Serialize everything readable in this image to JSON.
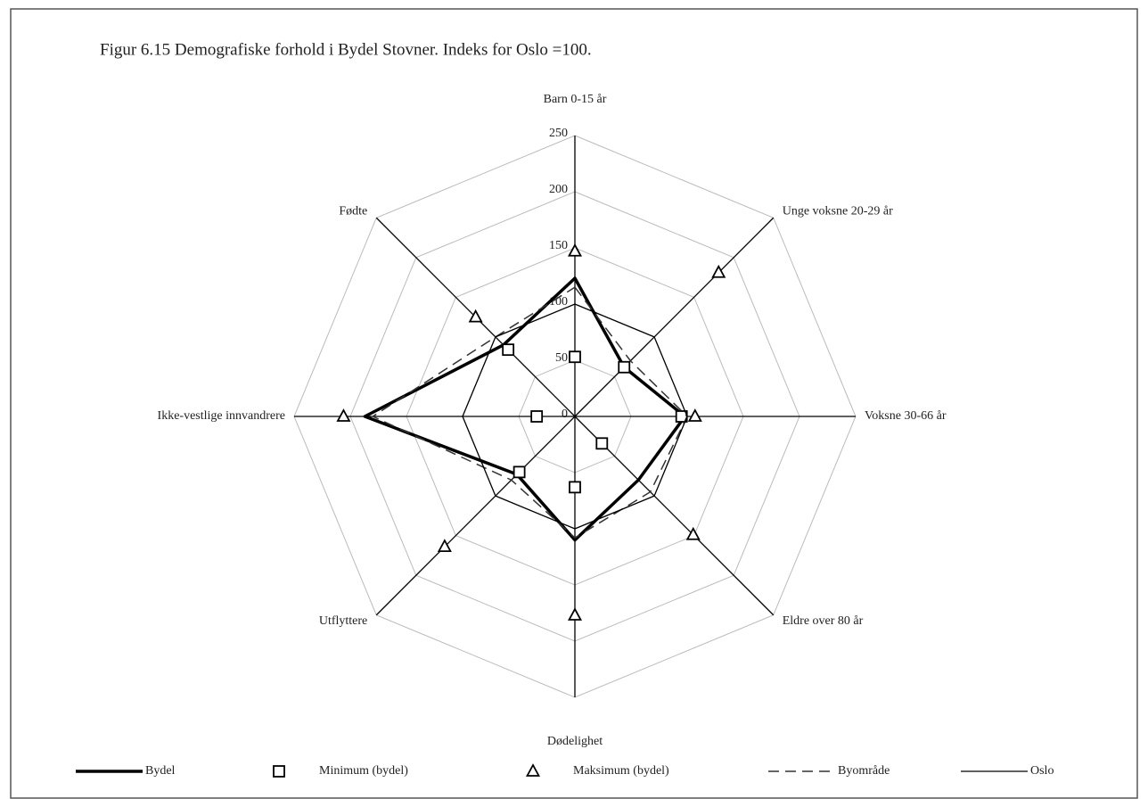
{
  "chart_data": {
    "type": "radar",
    "title": "Figur 6.15 Demografiske forhold i Bydel Stovner. Indeks for Oslo =100.",
    "categories": [
      "Barn 0-15 år",
      "Unge voksne 20-29 år",
      "Voksne 30-66 år",
      "Eldre over 80 år",
      "Dødelighet",
      "Utflyttere",
      "Ikke-vestlige innvandrere",
      "Fødte"
    ],
    "ylim": [
      0,
      250
    ],
    "yticks": [
      0,
      50,
      100,
      150,
      200,
      250
    ],
    "grid": true,
    "legend": "bottom",
    "series": [
      {
        "name": "Bydel",
        "color": "#000000",
        "line": "solid",
        "width": 3.5,
        "marker": "none",
        "values": [
          123,
          62,
          98,
          80,
          110,
          73,
          187,
          90
        ]
      },
      {
        "name": "Minimum (bydel)",
        "color": "#000000",
        "line": "none",
        "marker": "square",
        "values": [
          53,
          62,
          95,
          34,
          63,
          70,
          34,
          84
        ]
      },
      {
        "name": "Maksimum (bydel)",
        "color": "#000000",
        "line": "none",
        "marker": "triangle",
        "values": [
          147,
          181,
          107,
          149,
          177,
          164,
          206,
          125
        ]
      },
      {
        "name": "Byområde",
        "color": "#333333",
        "line": "dashed",
        "width": 1.5,
        "marker": "none",
        "values": [
          115,
          70,
          100,
          95,
          108,
          80,
          180,
          100
        ]
      },
      {
        "name": "Oslo",
        "color": "#000000",
        "line": "solid",
        "width": 1.3,
        "marker": "none",
        "values": [
          100,
          100,
          100,
          100,
          100,
          100,
          100,
          100
        ]
      }
    ]
  }
}
